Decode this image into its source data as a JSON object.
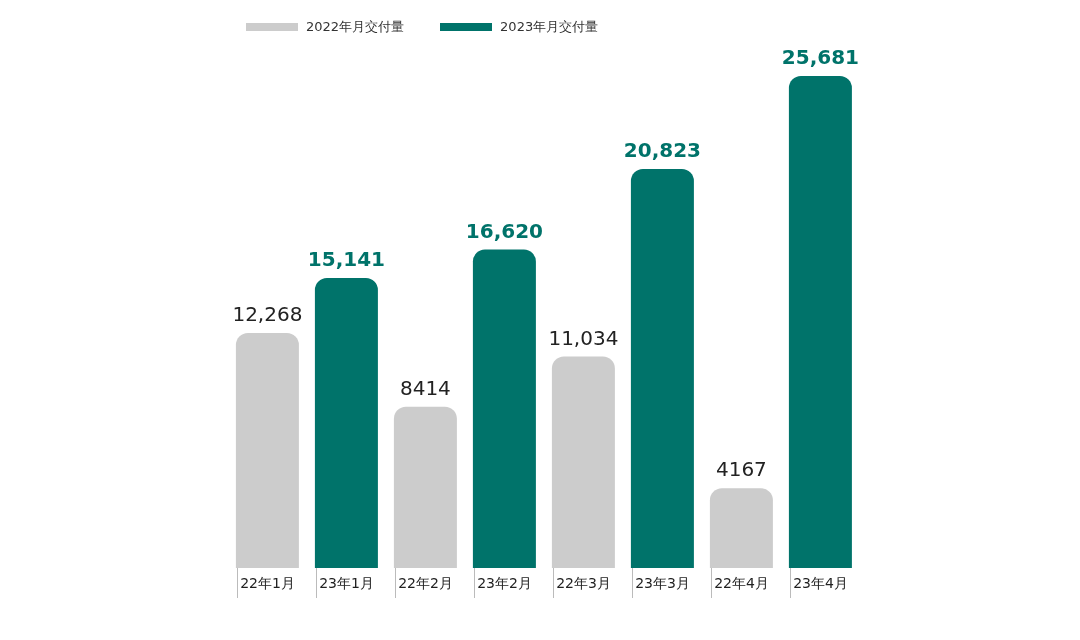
{
  "chart_data": {
    "type": "bar",
    "stacked": true,
    "legend": "top left",
    "categories": [
      "22年1月",
      "23年1月",
      "22年2月",
      "23年2月",
      "22年3月",
      "23年3月",
      "22年4月",
      "23年4月"
    ],
    "series": [
      {
        "name": "2022年月交付量",
        "color": "#cccccc",
        "values": [
          12268,
          null,
          8414,
          null,
          11034,
          null,
          4167,
          null
        ],
        "value_labels": [
          "12,268",
          null,
          "8414",
          null,
          "11,034",
          null,
          "4167",
          null
        ]
      },
      {
        "name": "2023年月交付量",
        "color": "#00736a",
        "values": [
          null,
          15141,
          null,
          16620,
          null,
          20823,
          null,
          25681
        ],
        "value_labels": [
          null,
          "15,141",
          null,
          "16,620",
          null,
          "20,823",
          null,
          "25,681"
        ]
      }
    ]
  }
}
